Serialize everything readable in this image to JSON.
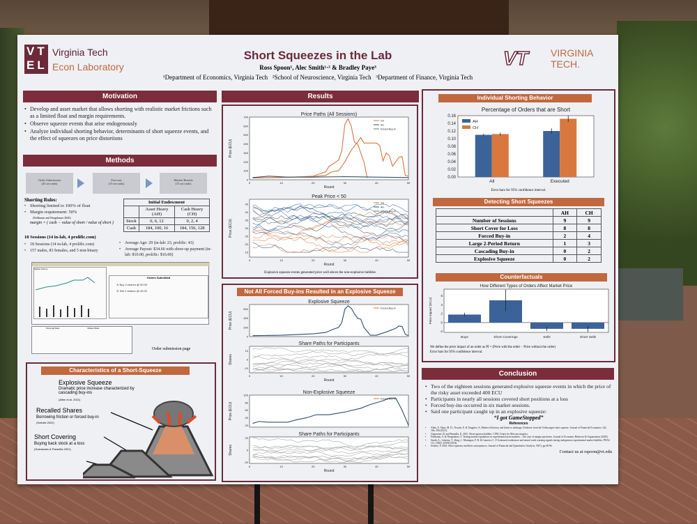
{
  "header": {
    "lab_logo_letters": "VTEL",
    "lab_name_1": "Virginia Tech",
    "lab_name_2": "Econ Laboratory",
    "title": "Short Squeezes in the Lab",
    "authors": "Ross Spoon¹, Alec Smith¹·² & Bradley Paye³",
    "affiliations": "¹Department of Economics, Virginia Tech   ²School of Neuroscience, Virginia Tech   ³Department of Finance, Virginia Tech",
    "vt_logo": "VT",
    "vt_name_1": "VIRGINIA",
    "vt_name_2": "TECH."
  },
  "motivation": {
    "title": "Motivation",
    "bullets": [
      "Develop and asset market that allows shorting with realistic market frictions such as a limited float and margin requirements.",
      "Observe squeeze events that arise endogenously",
      "Analyze individual shorting behavior, determinants of short squeeze events, and the effect of squeezes on price distortions"
    ]
  },
  "methods": {
    "title": "Methods",
    "flow": [
      {
        "label": "Order Submission",
        "time": "(45 seconds)"
      },
      {
        "label": "Forecast",
        "time": "(15 seconds)"
      },
      {
        "label": "Market Results",
        "time": "(15 seconds)"
      }
    ],
    "shorting_title": "Shorting Rules:",
    "rules": [
      "Shorting limited to 100% of float",
      "Margin requirement: 50%"
    ],
    "rule_cite": "(Fullbrunn and Neugebauer 2020)",
    "margin_formula": "margin = ( cash − value of short / value of short )",
    "endowment": {
      "title": "Initial Endowment",
      "cols": [
        "Asset Heavy (AH)",
        "Cash Heavy (CH)"
      ],
      "rows": [
        {
          "label": "Stock",
          "ah": "0, 6, 12",
          "ch": "0, 2, 4"
        },
        {
          "label": "Cash",
          "ah": "184, 100, 16",
          "ch": "184, 156, 128"
        }
      ]
    },
    "sessions_title": "18 Sessions (14 in-lab, 4 prolific.com)",
    "sessions": [
      "18 Sessions (14 in-lab, 4 prolific.com)",
      "157 males, 83 females, and 5 non-binary"
    ],
    "demographics": [
      "Average Age: 29 (in-lab: 23, prolific: 43)",
      "Average Payout: $34.66 with show-up payment (in-lab: $10.00, prolific: $16.00)"
    ],
    "screenshot": {
      "market_history": "Market History",
      "orders_title": "Orders Submitted",
      "orders": [
        "Buy 2 shares @ 50.00",
        "Sell 2 shares @ 40.00"
      ],
      "personal": "Personal Stats",
      "market": "Market Stats",
      "caption": "Order submission page"
    }
  },
  "characteristics": {
    "title": "Characteristics of a Short-Squeeze",
    "items": [
      {
        "title": "Explosive Squeeze",
        "desc": "Dramatic price increase characterized by cascading buy-ins",
        "cite": "(Allen et al. 2021)"
      },
      {
        "title": "Recalled Shares",
        "desc": "Borrowing friction or forced buy-in",
        "cite": "(Schultz 2022)"
      },
      {
        "title": "Short Covering",
        "desc": "Buying back stock at a loss",
        "cite": "(Guimaraes & Pannella 2021)"
      }
    ]
  },
  "results": {
    "title": "Results",
    "caption": "Explosive squeeze events generated price well above the non-explosive bubbles",
    "forced_title": "Not All Forced Buy-ins Resulted in an Explosive Squeeze"
  },
  "individual": {
    "title": "Individual Shorting Behavior",
    "note": "Error bars for 95% confidence interval."
  },
  "detecting": {
    "title": "Detecting Short Squeezes",
    "cols": [
      "AH",
      "CH"
    ],
    "rows": [
      {
        "label": "Number of Sessions",
        "ah": "9",
        "ch": "9"
      },
      {
        "label": "Short Cover for Loss",
        "ah": "8",
        "ch": "8"
      },
      {
        "label": "Forced Buy-in",
        "ah": "2",
        "ch": "4"
      },
      {
        "label": "Large 2-Period Return",
        "ah": "1",
        "ch": "3"
      },
      {
        "label": "Cascading Buy-in",
        "ah": "0",
        "ch": "2"
      },
      {
        "label": "Explosive Squeeze",
        "ah": "0",
        "ch": "2"
      }
    ]
  },
  "counterfactuals": {
    "title": "Counterfactuals",
    "note1": "We define the price impact of an order as PI = (Price with the order − Price without the order)",
    "note2": "Error bars for 95% confidence interval."
  },
  "conclusion": {
    "title": "Conclusion",
    "bullets": [
      "Two of the eighteen sessions generated explosive squeeze events in which the price of the risky asset exceeded 400 ECU",
      "Participants in nearly all sessions covered short positions at a loss",
      "Forced buy-ins occurred in six market sessions.",
      "Said one participant caught up in an explosive squeeze:"
    ],
    "quote": "“I got GameStopped”",
    "ref_title": "References",
    "refs": [
      "Allen, F., Haas, M. D., Nowak, E. & Tengulov, A. Market efficiency and limits to arbitrage: Evidence from the Volkswagen short squeeze. Journal of Financial Economics 142, 166–194 (2021).",
      "Guimaraes, B. and Pannella, P., 2021. Short-squeeze bubbles. CFM, Centre for Macroeconomics.",
      "Füllbrunn, S. & Neugebauer, T. Testing market regulations in experimental asset markets – The case of margin purchases. Journal of Economic Behavior & Organization (2020).",
      "Smith, A., Lohrenz, T., King, J., Montague, P. R. & Camerer, C. F. Irrational exuberance and neural crash warning signals during endogenous experimental market bubbles. PNAS 111, 10503–10508 (2014).",
      "Schultz, P. 2024. Short squeezes and their consequences. Journal of Financial and Quantitative Analysis, 59(7), pp.68-96."
    ],
    "contact": "Contact us at rspoon@vt.edu"
  },
  "chart_data": [
    {
      "type": "bar",
      "title": "Percentage of Orders that are Short",
      "categories": [
        "All",
        "Executed"
      ],
      "series": [
        {
          "name": "AH",
          "values": [
            0.11,
            0.12
          ],
          "errors": [
            0.003,
            0.007
          ],
          "color": "#3b6399"
        },
        {
          "name": "CH",
          "values": [
            0.112,
            0.152
          ],
          "errors": [
            0.004,
            0.008
          ],
          "color": "#d9773f"
        }
      ],
      "ylim": [
        0,
        0.16
      ],
      "yticks": [
        "0.00",
        "0.02",
        "0.04",
        "0.06",
        "0.08",
        "0.10",
        "0.12",
        "0.14",
        "0.16"
      ],
      "legend": "top-left"
    },
    {
      "type": "bar",
      "title": "How Different Types of Orders Affect Market Price",
      "ylabel": "Price Impact (ECU)",
      "categories": [
        "Buys",
        "Short Coverings",
        "Sells",
        "Short Sells"
      ],
      "values": [
        1.8,
        5.0,
        -1.4,
        -1.4
      ],
      "errors": [
        0.4,
        2.4,
        0.5,
        0.7
      ],
      "ylim": [
        -2.2,
        7.5
      ],
      "yticks": [
        "-2",
        "0",
        "2",
        "4",
        "6"
      ],
      "color": "#3b6399"
    },
    {
      "type": "line",
      "title": "Price Paths (All Sessions)",
      "xlabel": "Round",
      "ylabel": "Price (ECU)",
      "legend": [
        "CH",
        "AH",
        "Forced Buy-in"
      ],
      "xlim": [
        0,
        50
      ],
      "ylim": [
        0,
        700
      ],
      "xticks": [
        "0",
        "10",
        "20",
        "30",
        "40",
        "50"
      ],
      "yticks": [
        "0",
        "100",
        "200",
        "300",
        "400",
        "500",
        "600",
        "700"
      ],
      "series": [
        {
          "name": "CH",
          "x": [
            1,
            10,
            20,
            24,
            25,
            26,
            28,
            29,
            30,
            31,
            32,
            33,
            34,
            36,
            37
          ],
          "y": [
            20,
            25,
            40,
            90,
            150,
            170,
            220,
            320,
            620,
            680,
            600,
            420,
            400,
            200,
            20
          ]
        },
        {
          "name": "CH",
          "x": [
            1,
            20,
            24,
            26,
            28,
            30,
            32,
            34,
            35,
            36,
            40,
            41,
            42,
            43,
            44,
            45,
            47,
            48,
            49,
            50
          ],
          "y": [
            20,
            35,
            50,
            90,
            100,
            200,
            330,
            420,
            470,
            410,
            410,
            380,
            210,
            300,
            270,
            150,
            250,
            260,
            50,
            40
          ]
        },
        {
          "name": "AH",
          "x": [
            1,
            6,
            12,
            20,
            30,
            40,
            50
          ],
          "y": [
            25,
            40,
            30,
            30,
            35,
            30,
            25
          ]
        }
      ]
    },
    {
      "type": "line",
      "title": "Peak Price < 50",
      "xlabel": "Round",
      "ylabel": "Price (ECU)",
      "legend": [
        "CH",
        "AH",
        "Forced Buy-in"
      ],
      "xlim": [
        0,
        50
      ],
      "ylim": [
        12,
        48
      ],
      "xticks": [
        "0",
        "10",
        "20",
        "30",
        "40",
        "50"
      ],
      "yticks": [
        "15",
        "20",
        "25",
        "30",
        "35",
        "40",
        "45"
      ]
    },
    {
      "type": "line",
      "title": "Explosive Squeeze",
      "ylabel": "Price (ECU)",
      "legend": [
        "Forced Buy-in"
      ],
      "xlim": [
        0,
        50
      ],
      "ylim": [
        0,
        700
      ],
      "yticks": [
        "0",
        "200",
        "400",
        "600"
      ],
      "series": [
        {
          "x": [
            1,
            10,
            20,
            24,
            26,
            28,
            29,
            30,
            31,
            32,
            33,
            34,
            35,
            36,
            38,
            40,
            43,
            46,
            47,
            48,
            49,
            50
          ],
          "y": [
            20,
            30,
            60,
            90,
            150,
            200,
            300,
            600,
            670,
            620,
            500,
            400,
            380,
            200,
            30,
            30,
            100,
            180,
            230,
            220,
            50,
            20
          ]
        }
      ]
    },
    {
      "type": "line",
      "title": "Share Paths for Participants",
      "ylabel": "Shares",
      "xlabel": "Round",
      "xlim": [
        0,
        50
      ],
      "ylim": [
        -15,
        15
      ],
      "xticks": [
        "0",
        "10",
        "20",
        "30",
        "40",
        "50"
      ],
      "yticks": [
        "-10",
        "0",
        "10"
      ]
    },
    {
      "type": "line",
      "title": "Non-Explosive Squeeze",
      "ylabel": "Price (ECU)",
      "legend": [
        "Forced Buy-in"
      ],
      "xlim": [
        0,
        50
      ],
      "ylim": [
        15,
        100
      ],
      "yticks": [
        "20",
        "40",
        "60",
        "80",
        "100"
      ],
      "series": [
        {
          "x": [
            1,
            3,
            6,
            12,
            15,
            18,
            21,
            25,
            30,
            35,
            38,
            42,
            44,
            46,
            48,
            50
          ],
          "y": [
            25,
            30,
            28,
            28,
            35,
            40,
            48,
            48,
            55,
            65,
            75,
            85,
            92,
            92,
            60,
            20
          ]
        }
      ]
    },
    {
      "type": "line",
      "title": "Share Paths for Participants",
      "ylabel": "Shares",
      "xlabel": "Round",
      "xlim": [
        0,
        50
      ],
      "ylim": [
        -22,
        22
      ],
      "xticks": [
        "0",
        "10",
        "20",
        "30",
        "40",
        "50"
      ],
      "yticks": [
        "-20",
        "0",
        "20"
      ]
    }
  ]
}
